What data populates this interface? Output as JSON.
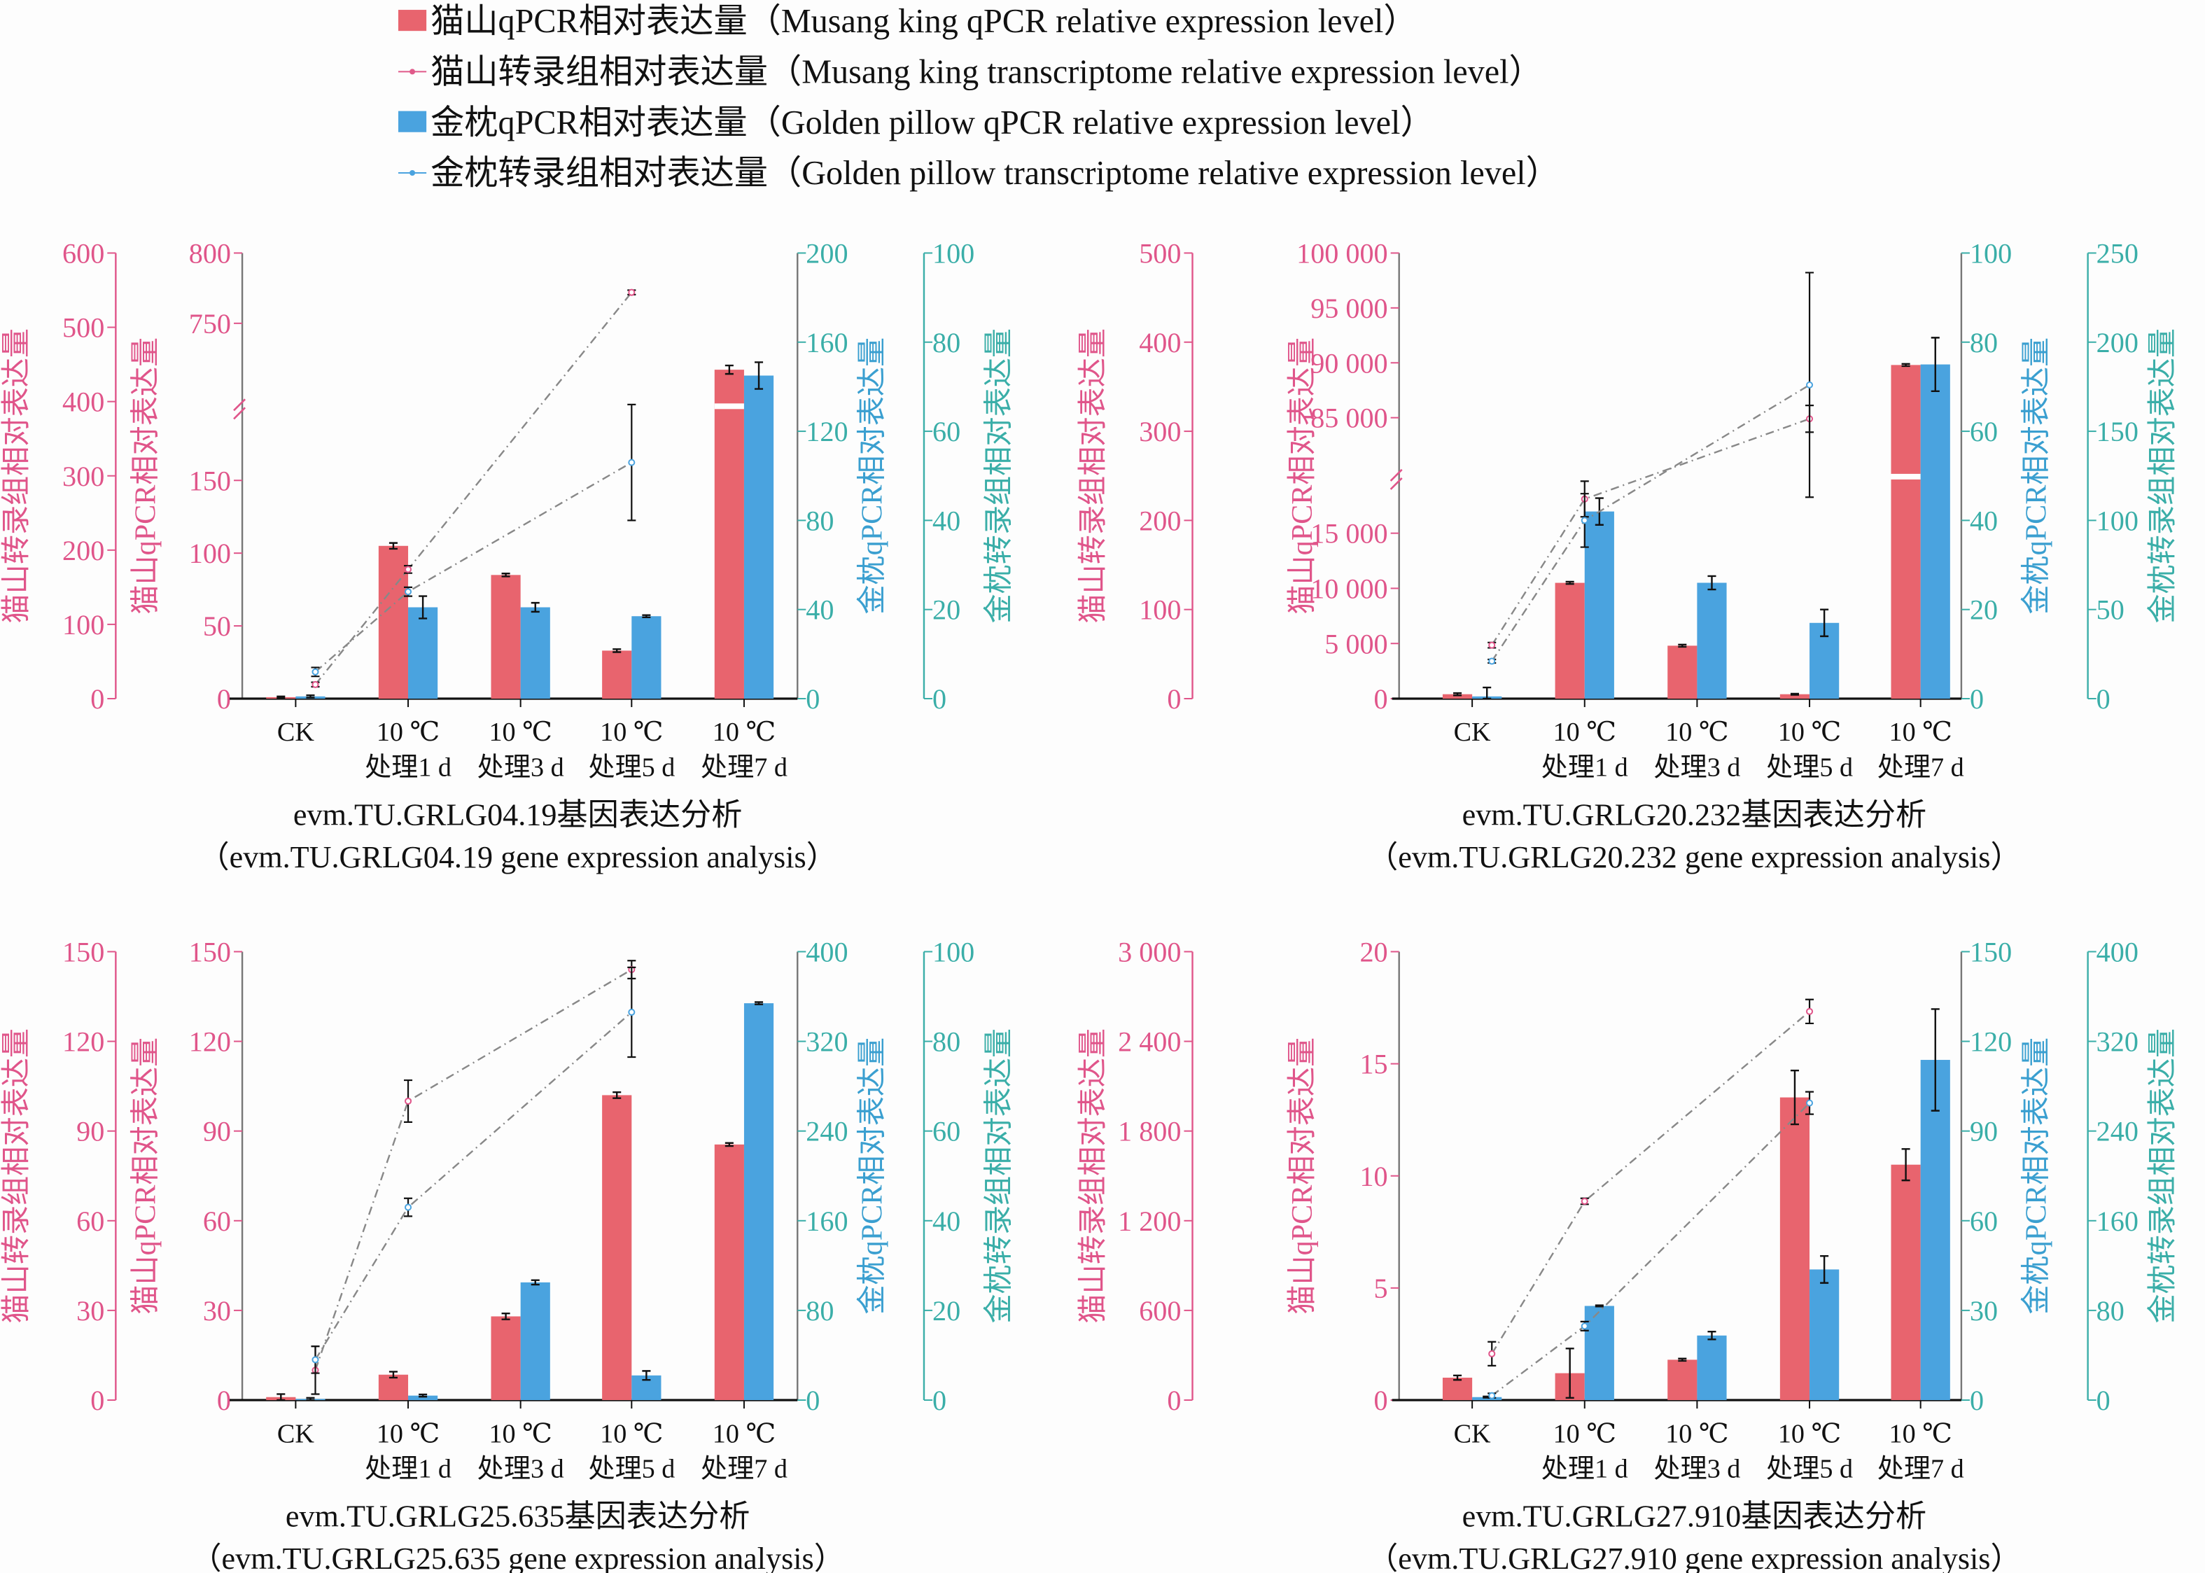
{
  "legend": [
    {
      "label": "猫山qPCR相对表达量（Musang king qPCR relative expression level）",
      "kind": "bar",
      "color": "#e8646e"
    },
    {
      "label": "猫山转录组相对表达量（Musang king transcriptome relative expression level）",
      "kind": "line",
      "color": "#e05a8a"
    },
    {
      "label": "金枕qPCR相对表达量（Golden pillow qPCR relative expression level）",
      "kind": "bar",
      "color": "#4aa3df"
    },
    {
      "label": "金枕转录组相对表达量（Golden pillow transcriptome relative expression level）",
      "kind": "line",
      "color": "#4aa3df"
    }
  ],
  "colors": {
    "musang_bar": "#e8646e",
    "golden_bar": "#4aa3df",
    "left_axis": "#e0558a",
    "right_axis": "#3aaea8",
    "line": "#888888"
  },
  "chart_data": [
    {
      "type": "bar",
      "title": "evm.TU.GRLG04.19基因表达分析",
      "subtitle": "（evm.TU.GRLG04.19 gene expression analysis）",
      "categories": [
        [
          "CK",
          ""
        ],
        [
          "10 ℃",
          "处理1 d"
        ],
        [
          "10 ℃",
          "处理3 d"
        ],
        [
          "10 ℃",
          "处理5 d"
        ],
        [
          "10 ℃",
          "处理7 d"
        ]
      ],
      "axes": {
        "musang_trans": {
          "label": "猫山转录组相对表达量",
          "ylim": [
            0,
            600
          ],
          "ticks": [
            0,
            100,
            200,
            300,
            400,
            500,
            600
          ],
          "tick_labels": [
            "0",
            "100",
            "200",
            "300",
            "400",
            "500",
            "600"
          ]
        },
        "musang_qpcr": {
          "label": "猫山qPCR相对表达量",
          "ylim": [
            0,
            800
          ],
          "break": [
            200,
            690
          ],
          "ticks": [
            0,
            50,
            100,
            150,
            750,
            800
          ],
          "tick_labels": [
            "0",
            "50",
            "100",
            "150",
            "750",
            "800"
          ]
        },
        "golden_qpcr": {
          "label": "金枕qPCR相对表达量",
          "ylim": [
            0,
            200
          ],
          "ticks": [
            0,
            40,
            80,
            120,
            160,
            200
          ],
          "tick_labels": [
            "0",
            "40",
            "80",
            "120",
            "160",
            "200"
          ]
        },
        "golden_trans": {
          "label": "金枕转录组相对表达量",
          "ylim": [
            0,
            100
          ],
          "ticks": [
            0,
            20,
            40,
            60,
            80,
            100
          ],
          "tick_labels": [
            "0",
            "20",
            "40",
            "60",
            "80",
            "100"
          ]
        }
      },
      "series": [
        {
          "name": "猫山qPCR",
          "type": "bar",
          "axis": "musang_qpcr",
          "values": [
            1,
            105,
            85,
            33,
            717
          ],
          "err": [
            0.5,
            2,
            1,
            1,
            3
          ]
        },
        {
          "name": "金枕qPCR",
          "type": "bar",
          "axis": "golden_qpcr",
          "values": [
            1,
            41,
            41,
            37,
            145
          ],
          "err": [
            0.5,
            5,
            2,
            0.5,
            6
          ]
        },
        {
          "name": "猫山转录组",
          "type": "line",
          "axis": "musang_trans",
          "values": [
            19,
            174,
            null,
            547,
            null
          ],
          "err": [
            3,
            5,
            null,
            3,
            null
          ]
        },
        {
          "name": "金枕转录组",
          "type": "line",
          "axis": "golden_trans",
          "values": [
            6,
            24,
            null,
            53,
            null
          ],
          "err": [
            1,
            1,
            null,
            13,
            null
          ]
        }
      ]
    },
    {
      "type": "bar",
      "title": "evm.TU.GRLG20.232基因表达分析",
      "subtitle": "（evm.TU.GRLG20.232 gene expression analysis）",
      "categories": [
        [
          "CK",
          ""
        ],
        [
          "10 ℃",
          "处理1 d"
        ],
        [
          "10 ℃",
          "处理3 d"
        ],
        [
          "10 ℃",
          "处理5 d"
        ],
        [
          "10 ℃",
          "处理7 d"
        ]
      ],
      "axes": {
        "musang_trans": {
          "label": "猫山转录组相对表达量",
          "ylim": [
            0,
            500
          ],
          "ticks": [
            0,
            100,
            200,
            300,
            400,
            500
          ],
          "tick_labels": [
            "0",
            "100",
            "200",
            "300",
            "400",
            "500"
          ]
        },
        "musang_qpcr": {
          "label": "猫山qPCR相对表达量",
          "ylim": [
            0,
            100000
          ],
          "break": [
            20000,
            79500
          ],
          "ticks": [
            0,
            5000,
            10000,
            15000,
            85000,
            90000,
            95000,
            100000
          ],
          "tick_labels": [
            "0",
            "5 000",
            "10 000",
            "15 000",
            "85 000",
            "90 000",
            "95 000",
            "100 000"
          ]
        },
        "golden_qpcr": {
          "label": "金枕qPCR相对表达量",
          "ylim": [
            0,
            100
          ],
          "ticks": [
            0,
            20,
            40,
            60,
            80,
            100
          ],
          "tick_labels": [
            "0",
            "20",
            "40",
            "60",
            "80",
            "100"
          ]
        },
        "golden_trans": {
          "label": "金枕转录组相对表达量",
          "ylim": [
            0,
            250
          ],
          "ticks": [
            0,
            50,
            100,
            150,
            200,
            250
          ],
          "tick_labels": [
            "0",
            "50",
            "100",
            "150",
            "200",
            "250"
          ]
        }
      },
      "series": [
        {
          "name": "猫山qPCR",
          "type": "bar",
          "axis": "musang_qpcr",
          "values": [
            400,
            10500,
            4800,
            400,
            89800
          ],
          "err": [
            100,
            100,
            100,
            50,
            100
          ]
        },
        {
          "name": "金枕qPCR",
          "type": "bar",
          "axis": "golden_qpcr",
          "values": [
            0.5,
            42,
            26,
            17,
            75
          ],
          "err": [
            2,
            3,
            1.5,
            3,
            6
          ]
        },
        {
          "name": "猫山转录组",
          "type": "line",
          "axis": "musang_trans",
          "values": [
            60,
            224,
            null,
            314,
            null
          ],
          "err": [
            3,
            20,
            null,
            15,
            null
          ]
        },
        {
          "name": "金枕转录组",
          "type": "line",
          "axis": "golden_trans",
          "values": [
            21,
            100,
            null,
            176,
            null
          ],
          "err": [
            1,
            15,
            null,
            63,
            null
          ]
        }
      ]
    },
    {
      "type": "bar",
      "title": "evm.TU.GRLG25.635基因表达分析",
      "subtitle": "（evm.TU.GRLG25.635 gene expression analysis）",
      "categories": [
        [
          "CK",
          ""
        ],
        [
          "10 ℃",
          "处理1 d"
        ],
        [
          "10 ℃",
          "处理3 d"
        ],
        [
          "10 ℃",
          "处理5 d"
        ],
        [
          "10 ℃",
          "处理7 d"
        ]
      ],
      "axes": {
        "musang_trans": {
          "label": "猫山转录组相对表达量",
          "ylim": [
            0,
            150
          ],
          "ticks": [
            0,
            30,
            60,
            90,
            120,
            150
          ],
          "tick_labels": [
            "0",
            "30",
            "60",
            "90",
            "120",
            "150"
          ]
        },
        "musang_qpcr": {
          "label": "猫山qPCR相对表达量",
          "ylim": [
            0,
            150
          ],
          "ticks": [
            0,
            30,
            60,
            90,
            120,
            150
          ],
          "tick_labels": [
            "0",
            "30",
            "60",
            "90",
            "120",
            "150"
          ]
        },
        "golden_qpcr": {
          "label": "金枕qPCR相对表达量",
          "ylim": [
            0,
            400
          ],
          "ticks": [
            0,
            80,
            160,
            240,
            320,
            400
          ],
          "tick_labels": [
            "0",
            "80",
            "160",
            "240",
            "320",
            "400"
          ]
        },
        "golden_trans": {
          "label": "金枕转录组相对表达量",
          "ylim": [
            0,
            100
          ],
          "ticks": [
            0,
            20,
            40,
            60,
            80,
            100
          ],
          "tick_labels": [
            "0",
            "20",
            "40",
            "60",
            "80",
            "100"
          ]
        }
      },
      "series": [
        {
          "name": "猫山qPCR",
          "type": "bar",
          "axis": "musang_qpcr",
          "values": [
            1,
            8.5,
            28,
            102,
            85.5
          ],
          "err": [
            1,
            1,
            1,
            1,
            0.5
          ]
        },
        {
          "name": "金枕qPCR",
          "type": "bar",
          "axis": "golden_qpcr",
          "values": [
            1,
            4,
            105,
            22,
            354
          ],
          "err": [
            1,
            1,
            2,
            4,
            1
          ]
        },
        {
          "name": "猫山转录组",
          "type": "line",
          "axis": "musang_trans",
          "values": [
            10,
            100,
            null,
            144,
            null
          ],
          "err": [
            8,
            7,
            null,
            3,
            null
          ]
        },
        {
          "name": "金枕转录组",
          "type": "line",
          "axis": "golden_trans",
          "values": [
            9,
            43,
            null,
            86.5,
            null
          ],
          "err": [
            3,
            2,
            null,
            10,
            null
          ]
        }
      ]
    },
    {
      "type": "bar",
      "title": "evm.TU.GRLG27.910基因表达分析",
      "subtitle": "（evm.TU.GRLG27.910 gene expression analysis）",
      "categories": [
        [
          "CK",
          ""
        ],
        [
          "10 ℃",
          "处理1 d"
        ],
        [
          "10 ℃",
          "处理3 d"
        ],
        [
          "10 ℃",
          "处理5 d"
        ],
        [
          "10 ℃",
          "处理7 d"
        ]
      ],
      "axes": {
        "musang_trans": {
          "label": "猫山转录组相对表达量",
          "ylim": [
            0,
            3000
          ],
          "ticks": [
            0,
            600,
            1200,
            1800,
            2400,
            3000
          ],
          "tick_labels": [
            "0",
            "600",
            "1 200",
            "1 800",
            "2 400",
            "3 000"
          ]
        },
        "musang_qpcr": {
          "label": "猫山qPCR相对表达量",
          "ylim": [
            0,
            20
          ],
          "ticks": [
            0,
            5,
            10,
            15,
            20
          ],
          "tick_labels": [
            "0",
            "5",
            "10",
            "15",
            "20"
          ]
        },
        "golden_qpcr": {
          "label": "金枕qPCR相对表达量",
          "ylim": [
            0,
            150
          ],
          "ticks": [
            0,
            30,
            60,
            90,
            120,
            150
          ],
          "tick_labels": [
            "0",
            "30",
            "60",
            "90",
            "120",
            "150"
          ]
        },
        "golden_trans": {
          "label": "金枕转录组相对表达量",
          "ylim": [
            0,
            400
          ],
          "ticks": [
            0,
            80,
            160,
            240,
            320,
            400
          ],
          "tick_labels": [
            "0",
            "80",
            "160",
            "240",
            "320",
            "400"
          ]
        }
      },
      "series": [
        {
          "name": "猫山qPCR",
          "type": "bar",
          "axis": "musang_qpcr",
          "values": [
            1.0,
            1.2,
            1.8,
            13.5,
            10.5
          ],
          "err": [
            0.1,
            1.1,
            0.05,
            1.2,
            0.7
          ]
        },
        {
          "name": "金枕qPCR",
          "type": "bar",
          "axis": "golden_qpcr",
          "values": [
            1,
            31.5,
            21.6,
            43.7,
            113.8
          ],
          "err": [
            0.2,
            0.2,
            1.3,
            4.5,
            17
          ]
        },
        {
          "name": "猫山转录组",
          "type": "line",
          "axis": "musang_trans",
          "values": [
            310,
            1330,
            null,
            2600,
            null
          ],
          "err": [
            80,
            20,
            null,
            80,
            null
          ]
        },
        {
          "name": "金枕转录组",
          "type": "line",
          "axis": "golden_trans",
          "values": [
            4,
            66,
            null,
            265,
            null
          ],
          "err": [
            2,
            4,
            null,
            10,
            null
          ]
        }
      ]
    }
  ]
}
